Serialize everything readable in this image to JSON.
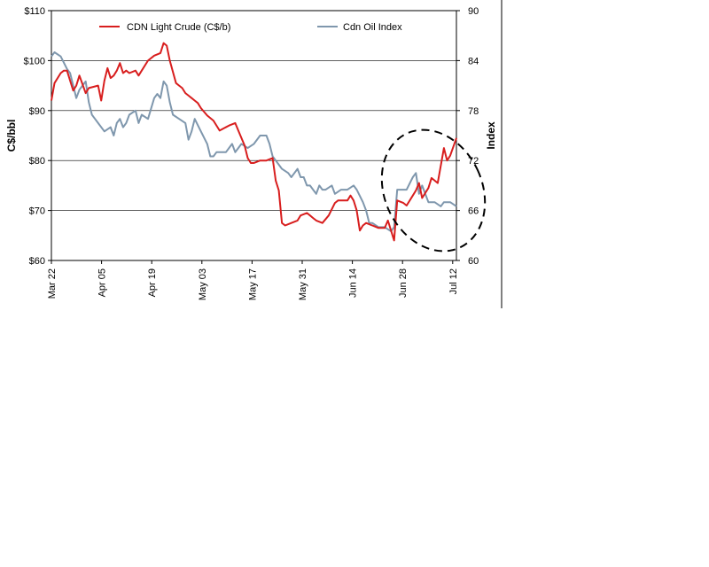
{
  "chart_data": {
    "type": "line",
    "title": "",
    "ylabel_left": "C$/bbl",
    "ylabel_right": "Index",
    "x_ticks": [
      "Mar 22",
      "Apr 05",
      "Apr 19",
      "May 03",
      "May 17",
      "May 31",
      "Jun 14",
      "Jun 28",
      "Jul 12"
    ],
    "ylim_left": [
      60,
      110
    ],
    "yticks_left": [
      "$60",
      "$70",
      "$80",
      "$90",
      "$100",
      "$110"
    ],
    "ylim_right": [
      60,
      90
    ],
    "yticks_right": [
      "60",
      "66",
      "72",
      "78",
      "84",
      "90"
    ],
    "grid": "horizontal",
    "legend_position": "top",
    "annotation": "dashed ellipse highlighting late-June to mid-July rebound",
    "series": [
      {
        "name": "CDN Light Crude (C$/b)",
        "color": "#d81e1e",
        "axis": "left",
        "x": [
          0,
          1,
          3,
          4,
          5,
          6,
          7,
          8,
          9,
          11,
          12,
          15,
          16,
          17,
          18,
          19,
          20,
          21,
          22,
          23,
          24,
          25,
          27,
          28,
          29,
          31,
          33,
          35,
          36,
          37,
          38,
          40,
          41,
          42,
          43,
          44,
          45,
          46,
          47,
          48,
          50,
          52,
          54,
          57,
          59,
          60,
          62,
          63,
          64,
          65,
          67,
          69,
          71,
          72,
          73,
          74,
          75,
          77,
          79,
          80,
          82,
          83,
          84,
          85,
          87,
          89,
          91,
          92,
          94,
          95,
          96,
          97,
          98,
          99,
          100,
          101,
          103,
          105,
          107,
          108,
          110,
          111,
          113,
          114,
          116,
          117,
          118,
          119,
          121,
          122,
          124,
          126,
          127,
          128,
          130
        ],
        "y": [
          92,
          95.5,
          97.5,
          98,
          98,
          96,
          94,
          95,
          97,
          93.5,
          94.5,
          95,
          92,
          96,
          98.5,
          96.5,
          97,
          98,
          99.5,
          97.5,
          98,
          97.5,
          98,
          97,
          98,
          100,
          101,
          101.5,
          103.5,
          103,
          100,
          95.5,
          95,
          94.5,
          93.5,
          93,
          92.5,
          92,
          91.5,
          90.5,
          89,
          88,
          86,
          87,
          87.5,
          86,
          83,
          80.5,
          79.5,
          79.5,
          80,
          80,
          80.5,
          76,
          74,
          67.5,
          67,
          67.5,
          68,
          69,
          69.5,
          69,
          68.5,
          68,
          67.5,
          69,
          71.5,
          72,
          72,
          72,
          73,
          72,
          70,
          66,
          67,
          67.5,
          67,
          66.5,
          66.5,
          68,
          64,
          72,
          71.5,
          71,
          73,
          74,
          75.5,
          72.5,
          74.5,
          76.5,
          75.5,
          82.5,
          80,
          81,
          84.5
        ]
      },
      {
        "name": "Cdn Oil Index",
        "color": "#7f97ad",
        "axis": "right",
        "x": [
          0,
          1,
          3,
          5,
          6,
          7,
          8,
          9,
          11,
          12,
          13,
          14,
          15,
          17,
          19,
          20,
          21,
          22,
          23,
          24,
          25,
          27,
          28,
          29,
          31,
          33,
          34,
          35,
          36,
          37,
          38,
          39,
          41,
          43,
          44,
          45,
          46,
          48,
          50,
          51,
          52,
          53,
          55,
          56,
          58,
          59,
          60,
          61,
          63,
          65,
          67,
          69,
          70,
          71,
          72,
          73,
          74,
          76,
          77,
          78,
          79,
          80,
          81,
          82,
          83,
          84,
          85,
          86,
          87,
          88,
          90,
          91,
          93,
          94,
          95,
          97,
          98,
          100,
          101,
          102,
          103,
          105,
          107,
          109,
          110,
          111,
          113,
          114,
          116,
          117,
          118,
          119,
          121,
          123,
          125,
          126,
          127,
          128,
          130
        ],
        "y": [
          84.5,
          85,
          84.5,
          83,
          82.5,
          81,
          79.5,
          80.5,
          81.5,
          79,
          77.5,
          77,
          76.5,
          75.5,
          76,
          75,
          76.5,
          77,
          76,
          76.5,
          77.5,
          78,
          76.5,
          77.5,
          77,
          79.5,
          80,
          79.5,
          81.5,
          81,
          79,
          77.5,
          77,
          76.5,
          74.5,
          75.5,
          77,
          75.5,
          74,
          72.5,
          72.5,
          73,
          73,
          73,
          74,
          73,
          73.5,
          74,
          73.5,
          74,
          75,
          75,
          74,
          72.5,
          72,
          71.5,
          71,
          70.5,
          70,
          70.5,
          71,
          70,
          70,
          69,
          69,
          68.5,
          68,
          69,
          68.5,
          68.5,
          69,
          68,
          68.5,
          68.5,
          68.5,
          69,
          68.5,
          67,
          66,
          64.5,
          64.5,
          64,
          64,
          63.5,
          64,
          68.5,
          68.5,
          68.5,
          70,
          70.5,
          68,
          69,
          67,
          67,
          66.5,
          67,
          67,
          67,
          66.5
        ]
      }
    ]
  }
}
